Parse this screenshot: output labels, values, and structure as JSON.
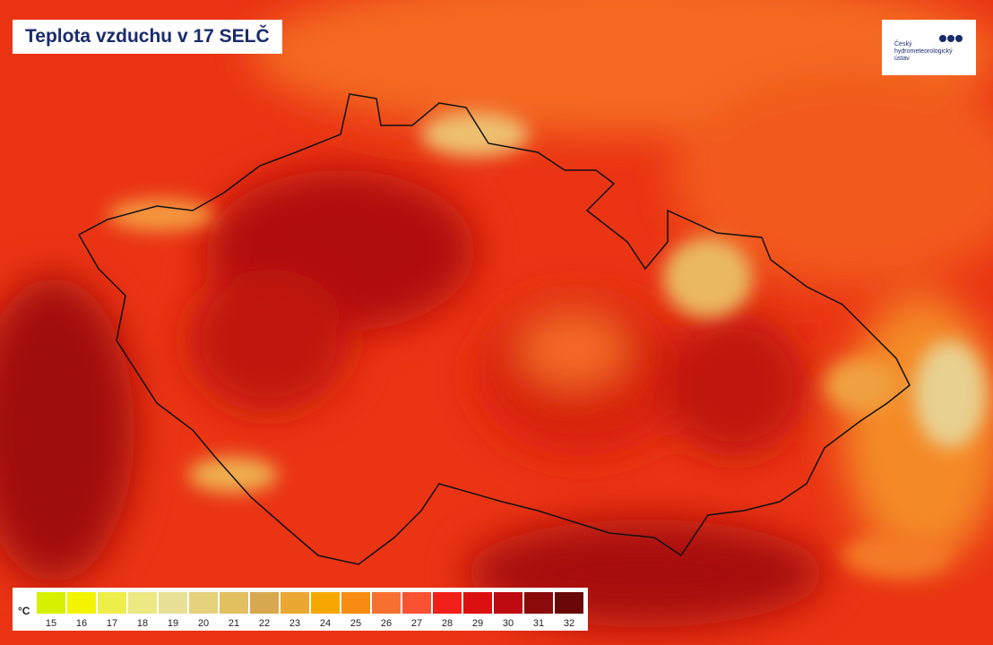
{
  "header": {
    "title": "Teplota vzduchu v 17 SELČ"
  },
  "logo": {
    "lines": [
      "Český",
      "hydrometeorologický",
      "ústav"
    ]
  },
  "legend": {
    "unit": "°C",
    "items": [
      {
        "label": 15,
        "color": "#d6f000"
      },
      {
        "label": 16,
        "color": "#f4f400"
      },
      {
        "label": 17,
        "color": "#eeee4a"
      },
      {
        "label": 18,
        "color": "#ece884"
      },
      {
        "label": 19,
        "color": "#e8e094"
      },
      {
        "label": 20,
        "color": "#e6d27c"
      },
      {
        "label": 21,
        "color": "#e2c062"
      },
      {
        "label": 22,
        "color": "#d8a850"
      },
      {
        "label": 23,
        "color": "#eaa832"
      },
      {
        "label": 24,
        "color": "#f6a800"
      },
      {
        "label": 25,
        "color": "#f88c12"
      },
      {
        "label": 26,
        "color": "#f87030"
      },
      {
        "label": 27,
        "color": "#f85232"
      },
      {
        "label": 28,
        "color": "#f02018"
      },
      {
        "label": 29,
        "color": "#dc1010"
      },
      {
        "label": 30,
        "color": "#be0a10"
      },
      {
        "label": 31,
        "color": "#8c0a0a"
      },
      {
        "label": 32,
        "color": "#6a0808"
      }
    ]
  }
}
